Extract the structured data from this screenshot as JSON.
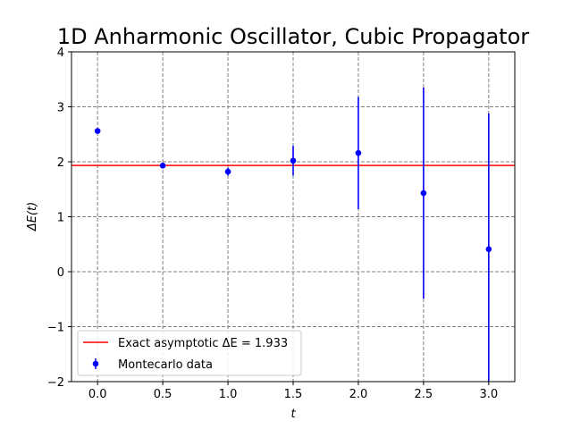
{
  "chart_data": {
    "type": "scatter",
    "title": "1D Anharmonic Oscillator, Cubic Propagator",
    "xlabel": "t",
    "ylabel": "ΔE(t)",
    "xlim": [
      -0.2,
      3.2
    ],
    "ylim": [
      -2,
      4
    ],
    "xticks": [
      "0.0",
      "0.5",
      "1.0",
      "1.5",
      "2.0",
      "2.5",
      "3.0"
    ],
    "xtick_values": [
      0.0,
      0.5,
      1.0,
      1.5,
      2.0,
      2.5,
      3.0
    ],
    "yticks": [
      "−2",
      "−1",
      "0",
      "1",
      "2",
      "3",
      "4"
    ],
    "ytick_values": [
      -2,
      -1,
      0,
      1,
      2,
      3,
      4
    ],
    "grid": true,
    "legend_position": "lower-left",
    "series": [
      {
        "name": "Montecarlo data",
        "kind": "errorbar",
        "color": "#0000ff",
        "x": [
          0.0,
          0.5,
          1.0,
          1.5,
          2.0,
          2.5,
          3.0
        ],
        "y": [
          2.56,
          1.93,
          1.82,
          2.02,
          2.16,
          1.43,
          0.41
        ],
        "yerr": [
          0.02,
          0.03,
          0.07,
          0.27,
          1.02,
          1.92,
          2.47
        ]
      }
    ],
    "reference_line": {
      "name": "Exact asymptotic ΔE = 1.933",
      "color": "#ff0000",
      "y": 1.933
    }
  }
}
